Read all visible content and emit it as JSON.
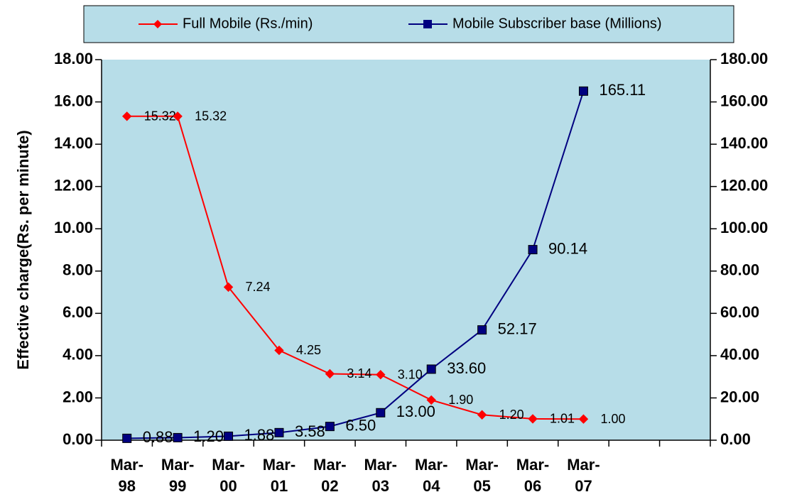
{
  "chart_data": {
    "type": "line",
    "ylabel": "Effective charge(Rs. per minute)",
    "categories": [
      "Mar- 98",
      "Mar- 99",
      "Mar- 00",
      "Mar- 01",
      "Mar- 02",
      "Mar- 03",
      "Mar- 04",
      "Mar- 05",
      "Mar- 06",
      "Mar- 07",
      null,
      null
    ],
    "series": [
      {
        "name": "Full Mobile (Rs./min)",
        "color": "#ff0000",
        "marker": "diamond",
        "values": [
          15.32,
          15.32,
          7.24,
          4.25,
          3.14,
          3.1,
          1.9,
          1.2,
          1.01,
          1.0,
          null,
          null
        ],
        "value_labels": [
          "15.32",
          "15.32",
          "7.24",
          "4.25",
          "3.14",
          "3.10",
          "1.90",
          "1.20",
          "1.01",
          "1.00",
          null,
          null
        ]
      },
      {
        "name": "Mobile Subscriber base (Millions)",
        "color": "#000080",
        "marker": "square",
        "axis": "y2",
        "values": [
          0.88,
          1.2,
          1.88,
          3.58,
          6.5,
          13.0,
          33.6,
          52.17,
          90.14,
          165.11,
          null,
          null
        ],
        "value_labels": [
          "0.88",
          "1.20",
          "1.88",
          "3.58",
          "6.50",
          "13.00",
          "33.60",
          "52.17",
          "90.14",
          "165.11",
          null,
          null
        ]
      }
    ],
    "ylim": [
      0,
      18
    ],
    "yticks": [
      {
        "value": 0,
        "label": "0.00"
      },
      {
        "value": 2,
        "label": "2.00"
      },
      {
        "value": 4,
        "label": "4.00"
      },
      {
        "value": 6,
        "label": "6.00"
      },
      {
        "value": 8,
        "label": "8.00"
      },
      {
        "value": 10,
        "label": "10.00"
      },
      {
        "value": 12,
        "label": "12.00"
      },
      {
        "value": 14,
        "label": "14.00"
      },
      {
        "value": 16,
        "label": "16.00"
      },
      {
        "value": 18,
        "label": "18.00"
      }
    ],
    "y2lim": [
      0,
      180
    ],
    "y2ticks": [
      {
        "value": 0,
        "label": "0.00"
      },
      {
        "value": 20,
        "label": "20.00"
      },
      {
        "value": 40,
        "label": "40.00"
      },
      {
        "value": 60,
        "label": "60.00"
      },
      {
        "value": 80,
        "label": "80.00"
      },
      {
        "value": 100,
        "label": "100.00"
      },
      {
        "value": 120,
        "label": "120.00"
      },
      {
        "value": 140,
        "label": "140.00"
      },
      {
        "value": 160,
        "label": "160.00"
      },
      {
        "value": 180,
        "label": "180.00"
      }
    ],
    "legend": "top",
    "background": "#b7dde8"
  }
}
